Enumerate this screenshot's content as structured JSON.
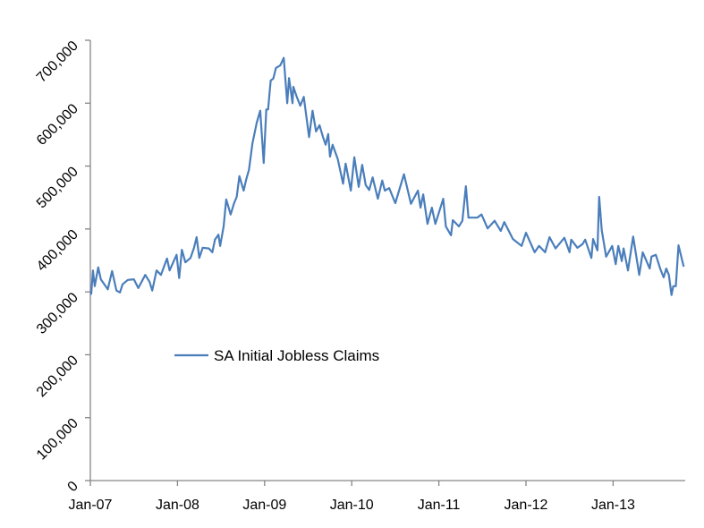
{
  "chart_data": {
    "type": "line",
    "title": "",
    "xlabel": "",
    "ylabel": "",
    "ylim": [
      0,
      700000
    ],
    "xlim": [
      2007.0,
      2013.81
    ],
    "yticks": [
      0,
      100000,
      200000,
      300000,
      400000,
      500000,
      600000,
      700000
    ],
    "ytick_labels": [
      "0",
      "100,000",
      "200,000",
      "300,000",
      "400,000",
      "500,000",
      "600,000",
      "700,000"
    ],
    "xticks": [
      2007,
      2008,
      2009,
      2010,
      2011,
      2012,
      2013
    ],
    "xtick_labels": [
      "Jan-07",
      "Jan-08",
      "Jan-09",
      "Jan-10",
      "Jan-11",
      "Jan-12",
      "Jan-13"
    ],
    "grid": false,
    "legend_placement": "center-left",
    "series": [
      {
        "name": "SA Initial Jobless Claims",
        "color": "#4a7ebb",
        "x": [
          2007.0,
          2007.01,
          2007.03,
          2007.05,
          2007.09,
          2007.12,
          2007.2,
          2007.25,
          2007.3,
          2007.34,
          2007.37,
          2007.43,
          2007.5,
          2007.55,
          2007.63,
          2007.68,
          2007.71,
          2007.76,
          2007.81,
          2007.88,
          2007.91,
          2007.99,
          2008.02,
          2008.05,
          2008.09,
          2008.15,
          2008.19,
          2008.22,
          2008.25,
          2008.29,
          2008.36,
          2008.4,
          2008.43,
          2008.47,
          2008.49,
          2008.53,
          2008.56,
          2008.61,
          2008.65,
          2008.68,
          2008.71,
          2008.76,
          2008.79,
          2008.82,
          2008.86,
          2008.91,
          2008.95,
          2008.99,
          2009.02,
          2009.04,
          2009.07,
          2009.1,
          2009.13,
          2009.18,
          2009.22,
          2009.26,
          2009.28,
          2009.32,
          2009.33,
          2009.37,
          2009.41,
          2009.45,
          2009.51,
          2009.55,
          2009.59,
          2009.63,
          2009.67,
          2009.7,
          2009.73,
          2009.75,
          2009.78,
          2009.84,
          2009.9,
          2009.93,
          2009.99,
          2010.03,
          2010.08,
          2010.12,
          2010.16,
          2010.2,
          2010.24,
          2010.3,
          2010.35,
          2010.38,
          2010.43,
          2010.5,
          2010.6,
          2010.68,
          2010.76,
          2010.79,
          2010.82,
          2010.87,
          2010.92,
          2010.96,
          2011.05,
          2011.08,
          2011.14,
          2011.16,
          2011.23,
          2011.27,
          2011.31,
          2011.34,
          2011.44,
          2011.49,
          2011.56,
          2011.64,
          2011.71,
          2011.75,
          2011.85,
          2011.95,
          2012.0,
          2012.1,
          2012.15,
          2012.22,
          2012.27,
          2012.34,
          2012.44,
          2012.5,
          2012.52,
          2012.59,
          2012.65,
          2012.68,
          2012.75,
          2012.77,
          2012.82,
          2012.84,
          2012.87,
          2012.92,
          2012.99,
          2013.03,
          2013.06,
          2013.1,
          2013.12,
          2013.17,
          2013.23,
          2013.3,
          2013.34,
          2013.42,
          2013.44,
          2013.49,
          2013.54,
          2013.58,
          2013.61,
          2013.64,
          2013.67,
          2013.69,
          2013.72,
          2013.75,
          2013.81
        ],
        "values": [
          299000,
          297000,
          334000,
          309000,
          339000,
          320000,
          304000,
          333000,
          302000,
          299000,
          312000,
          319000,
          320000,
          306000,
          327000,
          316000,
          302000,
          334000,
          327000,
          353000,
          334000,
          359000,
          322000,
          367000,
          347000,
          354000,
          370000,
          387000,
          354000,
          370000,
          369000,
          363000,
          383000,
          391000,
          373000,
          404000,
          447000,
          423000,
          441000,
          451000,
          484000,
          461000,
          479000,
          494000,
          536000,
          569000,
          588000,
          505000,
          590000,
          590000,
          636000,
          639000,
          656000,
          660000,
          672000,
          600000,
          640000,
          600000,
          626000,
          610000,
          596000,
          610000,
          546000,
          588000,
          555000,
          565000,
          546000,
          534000,
          551000,
          515000,
          534000,
          511000,
          472000,
          504000,
          461000,
          514000,
          467000,
          502000,
          470000,
          462000,
          482000,
          448000,
          477000,
          461000,
          465000,
          441000,
          487000,
          440000,
          461000,
          434000,
          455000,
          408000,
          434000,
          408000,
          448000,
          404000,
          390000,
          414000,
          404000,
          413000,
          468000,
          418000,
          418000,
          423000,
          401000,
          413000,
          397000,
          411000,
          384000,
          373000,
          394000,
          363000,
          373000,
          363000,
          387000,
          369000,
          386000,
          363000,
          383000,
          370000,
          376000,
          383000,
          354000,
          384000,
          366000,
          451000,
          398000,
          356000,
          373000,
          344000,
          373000,
          349000,
          369000,
          334000,
          388000,
          327000,
          363000,
          337000,
          356000,
          359000,
          337000,
          323000,
          337000,
          327000,
          295000,
          309000,
          309000,
          374000,
          340000
        ]
      }
    ]
  }
}
